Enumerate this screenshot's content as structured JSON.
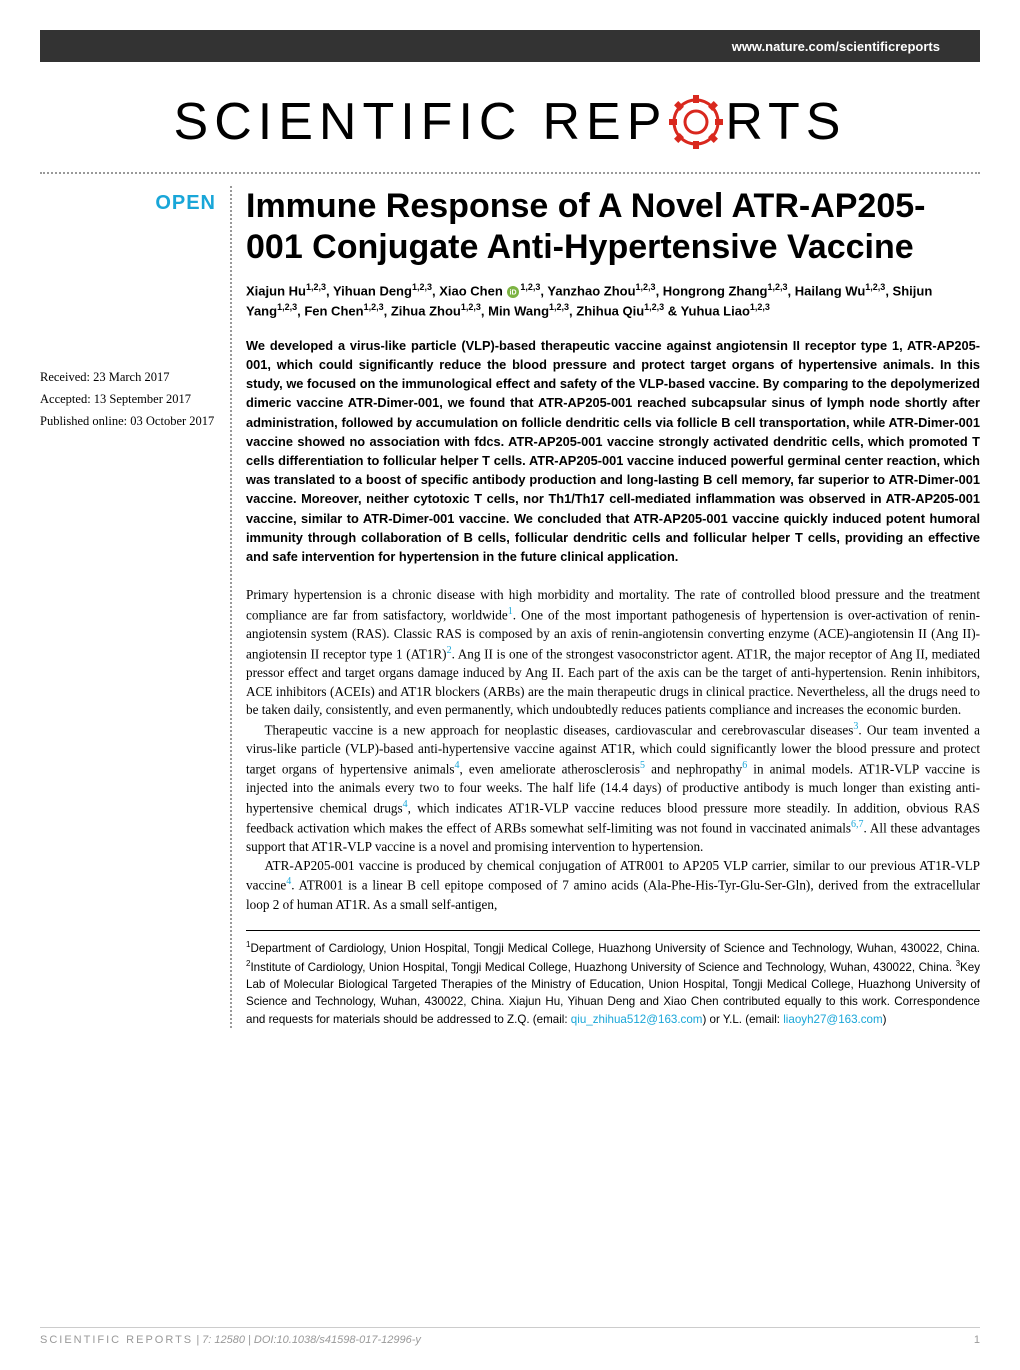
{
  "styling": {
    "accent_color": "#19a6d8",
    "header_band_bg": "#333333",
    "page_bg": "#ffffff",
    "text_color": "#000000",
    "muted_color": "#999999",
    "title_fontsize": 34,
    "abstract_fontsize": 12.8,
    "body_fontsize": 13.2,
    "authors_fontsize": 13,
    "affil_fontsize": 11.6,
    "footer_fontsize": 11,
    "open_fontsize": 20,
    "logo_fontsize": 52,
    "orcid_fill": "#7cb342"
  },
  "header": {
    "site_url": "www.nature.com/scientificreports",
    "logo_left": "SCIENTIFIC",
    "logo_right_1": "REP",
    "logo_right_2": "RTS",
    "open_label": "OPEN"
  },
  "meta": {
    "received": "Received: 23 March 2017",
    "accepted": "Accepted: 13 September 2017",
    "published": "Published online: 03 October 2017"
  },
  "article": {
    "title": "Immune Response of A Novel ATR-AP205-001 Conjugate Anti-Hypertensive Vaccine",
    "authors_html": "Xiajun Hu<sup>1,2,3</sup>, Yihuan Deng<sup>1,2,3</sup>, Xiao Chen <span class=\"orcid-icon\" data-name=\"orcid-icon\" data-interactable=\"false\"><svg class=\"orcid-svg\" viewBox=\"0 0 24 24\"><circle cx=\"12\" cy=\"12\" r=\"12\" fill=\"#7cb342\"/><text x=\"12\" y=\"17\" text-anchor=\"middle\" font-size=\"14\" fill=\"#fff\" font-family=\"Arial\" font-weight=\"bold\">iD</text></svg></span><sup>1,2,3</sup>, Yanzhao Zhou<sup>1,2,3</sup>, Hongrong Zhang<sup>1,2,3</sup>, Hailang Wu<sup>1,2,3</sup>, Shijun Yang<sup>1,2,3</sup>, Fen Chen<sup>1,2,3</sup>, Zihua Zhou<sup>1,2,3</sup>, Min Wang<sup>1,2,3</sup>, Zhihua Qiu<sup>1,2,3</sup> & Yuhua Liao<sup>1,2,3</sup>",
    "abstract": "We developed a virus-like particle (VLP)-based therapeutic vaccine against angiotensin II receptor type 1, ATR-AP205-001, which could significantly reduce the blood pressure and protect target organs of hypertensive animals. In this study, we focused on the immunological effect and safety of the VLP-based vaccine. By comparing to the depolymerized dimeric vaccine ATR-Dimer-001, we found that ATR-AP205-001 reached subcapsular sinus of lymph node shortly after administration, followed by accumulation on follicle dendritic cells via follicle B cell transportation, while ATR-Dimer-001 vaccine showed no association with fdcs. ATR-AP205-001 vaccine strongly activated dendritic cells, which promoted T cells differentiation to follicular helper T cells. ATR-AP205-001 vaccine induced powerful germinal center reaction, which was translated to a boost of specific antibody production and long-lasting B cell memory, far superior to ATR-Dimer-001 vaccine. Moreover, neither cytotoxic T cells, nor Th1/Th17 cell-mediated inflammation was observed in ATR-AP205-001 vaccine, similar to ATR-Dimer-001 vaccine. We concluded that ATR-AP205-001 vaccine quickly induced potent humoral immunity through collaboration of B cells, follicular dendritic cells and follicular helper T cells, providing an effective and safe intervention for hypertension in the future clinical application.",
    "paragraphs": [
      "Primary hypertension is a chronic disease with high morbidity and mortality. The rate of controlled blood pressure and the treatment compliance are far from satisfactory, worldwide<a class=\"ref-link\" data-name=\"ref-1\" data-interactable=\"true\">1</a>. One of the most important pathogenesis of hypertension is over-activation of renin-angiotensin system (RAS). Classic RAS is composed by an axis of renin-angiotensin converting enzyme (ACE)-angiotensin II (Ang II)-angiotensin II receptor type 1 (AT1R)<a class=\"ref-link\" data-name=\"ref-2\" data-interactable=\"true\">2</a>. Ang II is one of the strongest vasoconstrictor agent. AT1R, the major receptor of Ang II, mediated pressor effect and target organs damage induced by Ang II. Each part of the axis can be the target of anti-hypertension. Renin inhibitors, ACE inhibitors (ACEIs) and AT1R blockers (ARBs) are the main therapeutic drugs in clinical practice. Nevertheless, all the drugs need to be taken daily, consistently, and even permanently, which undoubtedly reduces patients compliance and increases the economic burden.",
      "Therapeutic vaccine is a new approach for neoplastic diseases, cardiovascular and cerebrovascular diseases<a class=\"ref-link\" data-name=\"ref-3\" data-interactable=\"true\">3</a>. Our team invented a virus-like particle (VLP)-based anti-hypertensive vaccine against AT1R, which could significantly lower the blood pressure and protect target organs of hypertensive animals<a class=\"ref-link\" data-name=\"ref-4\" data-interactable=\"true\">4</a>, even ameliorate atherosclerosis<a class=\"ref-link\" data-name=\"ref-5\" data-interactable=\"true\">5</a> and nephropathy<a class=\"ref-link\" data-name=\"ref-6\" data-interactable=\"true\">6</a> in animal models. AT1R-VLP vaccine is injected into the animals every two to four weeks. The half life (14.4 days) of productive antibody is much longer than existing anti-hypertensive chemical drugs<a class=\"ref-link\" data-name=\"ref-4b\" data-interactable=\"true\">4</a>, which indicates AT1R-VLP vaccine reduces blood pressure more steadily. In addition, obvious RAS feedback activation which makes the effect of ARBs somewhat self-limiting was not found in vaccinated animals<a class=\"ref-link\" data-name=\"ref-67\" data-interactable=\"true\">6,7</a>. All these advantages support that AT1R-VLP vaccine is a novel and promising intervention to hypertension.",
      "ATR-AP205-001 vaccine is produced by chemical conjugation of ATR001 to AP205 VLP carrier, similar to our previous AT1R-VLP vaccine<a class=\"ref-link\" data-name=\"ref-4c\" data-interactable=\"true\">4</a>. ATR001 is a linear B cell epitope composed of 7 amino acids (Ala-Phe-His-Tyr-Glu-Ser-Gln), derived from the extracellular loop 2 of human AT1R. As a small self-antigen,"
    ],
    "affiliations_html": "<sup>1</sup>Department of Cardiology, Union Hospital, Tongji Medical College, Huazhong University of Science and Technology, Wuhan, 430022, China. <sup>2</sup>Institute of Cardiology, Union Hospital, Tongji Medical College, Huazhong University of Science and Technology, Wuhan, 430022, China. <sup>3</sup>Key Lab of Molecular Biological Targeted Therapies of the Ministry of Education, Union Hospital, Tongji Medical College, Huazhong University of Science and Technology, Wuhan, 430022, China. Xiajun Hu, Yihuan Deng and Xiao Chen contributed equally to this work. Correspondence and requests for materials should be addressed to Z.Q. (email: <a class=\"email-link\" data-name=\"email-zq\" data-interactable=\"true\">qiu_zhihua512@163.com</a>) or Y.L. (email: <a class=\"email-link\" data-name=\"email-yl\" data-interactable=\"true\">liaoyh27@163.com</a>)"
  },
  "footer": {
    "journal": "SCIENTIFIC REPORTS",
    "citation": " | 7: 12580  | DOI:10.1038/s41598-017-12996-y",
    "page": "1"
  }
}
